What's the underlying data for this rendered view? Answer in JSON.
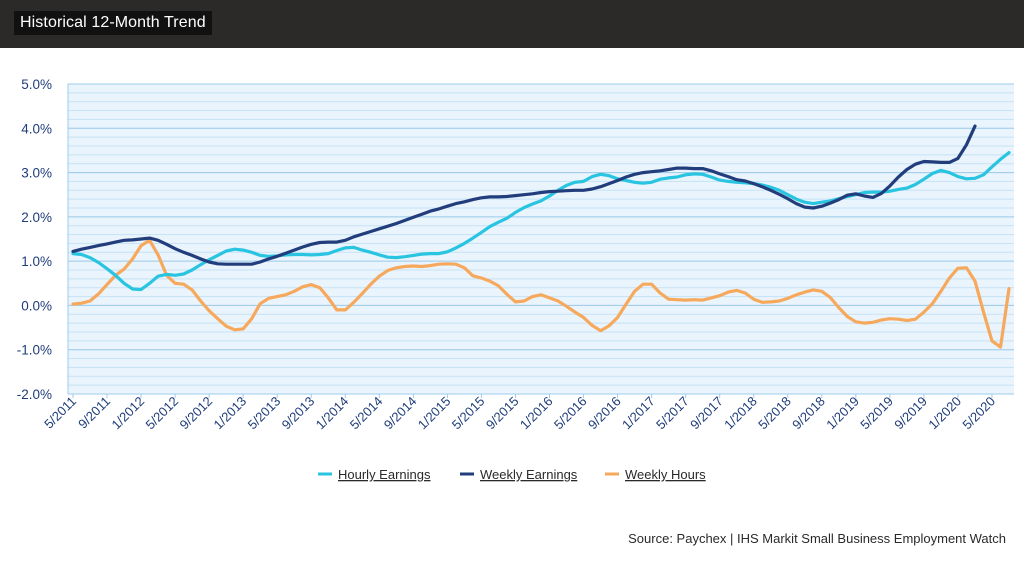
{
  "header": {
    "title": "Historical 12-Month Trend"
  },
  "source": "Source: Paychex | IHS Markit Small Business Employment Watch",
  "chart_data": {
    "type": "line",
    "title": "Historical 12-Month Trend",
    "xlabel": "",
    "ylabel": "",
    "ylim": [
      -2.0,
      5.0
    ],
    "yticks": [
      "5.0%",
      "4.0%",
      "3.0%",
      "2.0%",
      "1.0%",
      "0.0%",
      "-1.0%",
      "-2.0%"
    ],
    "grid": true,
    "legend_position": "bottom-center",
    "x_start": "5/2011",
    "x_end": "6/2020",
    "x_tick_labels": [
      "5/2011",
      "9/2011",
      "1/2012",
      "5/2012",
      "9/2012",
      "1/2013",
      "5/2013",
      "9/2013",
      "1/2014",
      "5/2014",
      "9/2014",
      "1/2015",
      "5/2015",
      "9/2015",
      "1/2016",
      "5/2016",
      "9/2016",
      "1/2017",
      "5/2017",
      "9/2017",
      "1/2018",
      "5/2018",
      "9/2018",
      "1/2019",
      "5/2019",
      "9/2019",
      "1/2020",
      "5/2020"
    ],
    "series": [
      {
        "name": "Hourly Earnings",
        "color": "#29c4e0",
        "values": [
          1.17,
          1.15,
          1.08,
          0.97,
          0.83,
          0.68,
          0.5,
          0.37,
          0.36,
          0.5,
          0.66,
          0.7,
          0.68,
          0.71,
          0.8,
          0.92,
          1.03,
          1.13,
          1.23,
          1.27,
          1.25,
          1.2,
          1.13,
          1.11,
          1.12,
          1.14,
          1.15,
          1.15,
          1.14,
          1.15,
          1.17,
          1.24,
          1.3,
          1.31,
          1.25,
          1.2,
          1.14,
          1.09,
          1.08,
          1.1,
          1.13,
          1.16,
          1.17,
          1.17,
          1.21,
          1.3,
          1.4,
          1.52,
          1.65,
          1.78,
          1.88,
          1.97,
          2.1,
          2.21,
          2.29,
          2.36,
          2.47,
          2.6,
          2.71,
          2.78,
          2.8,
          2.91,
          2.96,
          2.93,
          2.86,
          2.82,
          2.78,
          2.76,
          2.78,
          2.85,
          2.88,
          2.9,
          2.95,
          2.97,
          2.96,
          2.9,
          2.83,
          2.8,
          2.78,
          2.77,
          2.75,
          2.72,
          2.67,
          2.6,
          2.5,
          2.4,
          2.33,
          2.3,
          2.33,
          2.36,
          2.41,
          2.46,
          2.5,
          2.55,
          2.56,
          2.56,
          2.58,
          2.62,
          2.65,
          2.73,
          2.85,
          2.98,
          3.05,
          3.0,
          2.91,
          2.86,
          2.87,
          2.95,
          3.13,
          3.3,
          3.45
        ]
      },
      {
        "name": "Weekly Earnings",
        "color": "#223d7c",
        "values": [
          1.22,
          1.27,
          1.31,
          1.35,
          1.39,
          1.43,
          1.47,
          1.48,
          1.5,
          1.52,
          1.47,
          1.38,
          1.28,
          1.2,
          1.13,
          1.05,
          0.98,
          0.94,
          0.93,
          0.93,
          0.93,
          0.93,
          0.98,
          1.05,
          1.11,
          1.18,
          1.25,
          1.32,
          1.38,
          1.42,
          1.43,
          1.43,
          1.47,
          1.55,
          1.61,
          1.67,
          1.73,
          1.79,
          1.85,
          1.92,
          1.99,
          2.06,
          2.13,
          2.18,
          2.24,
          2.3,
          2.34,
          2.39,
          2.43,
          2.45,
          2.45,
          2.46,
          2.48,
          2.5,
          2.52,
          2.55,
          2.57,
          2.58,
          2.59,
          2.6,
          2.6,
          2.63,
          2.68,
          2.75,
          2.82,
          2.9,
          2.96,
          3.0,
          3.02,
          3.04,
          3.07,
          3.1,
          3.1,
          3.09,
          3.09,
          3.04,
          2.97,
          2.91,
          2.84,
          2.81,
          2.75,
          2.68,
          2.6,
          2.51,
          2.41,
          2.3,
          2.22,
          2.2,
          2.24,
          2.31,
          2.39,
          2.49,
          2.52,
          2.47,
          2.44,
          2.53,
          2.7,
          2.9,
          3.07,
          3.19,
          3.25,
          3.24,
          3.23,
          3.23,
          3.32,
          3.63,
          4.05
        ]
      },
      {
        "name": "Weekly Hours",
        "color": "#f6a95c",
        "values": [
          0.03,
          0.05,
          0.1,
          0.26,
          0.47,
          0.68,
          0.82,
          1.05,
          1.35,
          1.47,
          1.14,
          0.68,
          0.5,
          0.48,
          0.35,
          0.1,
          -0.12,
          -0.3,
          -0.47,
          -0.55,
          -0.53,
          -0.3,
          0.04,
          0.16,
          0.2,
          0.24,
          0.32,
          0.42,
          0.47,
          0.4,
          0.17,
          -0.1,
          -0.1,
          0.07,
          0.27,
          0.48,
          0.66,
          0.79,
          0.85,
          0.88,
          0.89,
          0.88,
          0.9,
          0.93,
          0.94,
          0.93,
          0.85,
          0.67,
          0.62,
          0.55,
          0.44,
          0.25,
          0.08,
          0.1,
          0.2,
          0.24,
          0.17,
          0.1,
          -0.02,
          -0.15,
          -0.27,
          -0.45,
          -0.57,
          -0.46,
          -0.27,
          0.03,
          0.32,
          0.48,
          0.48,
          0.28,
          0.14,
          0.13,
          0.12,
          0.13,
          0.12,
          0.17,
          0.22,
          0.3,
          0.34,
          0.28,
          0.14,
          0.07,
          0.08,
          0.1,
          0.16,
          0.24,
          0.3,
          0.35,
          0.32,
          0.18,
          -0.05,
          -0.25,
          -0.37,
          -0.4,
          -0.38,
          -0.33,
          -0.3,
          -0.31,
          -0.34,
          -0.31,
          -0.15,
          0.04,
          0.32,
          0.62,
          0.84,
          0.85,
          0.55,
          -0.15,
          -0.8,
          -0.94,
          0.38
        ]
      }
    ]
  }
}
